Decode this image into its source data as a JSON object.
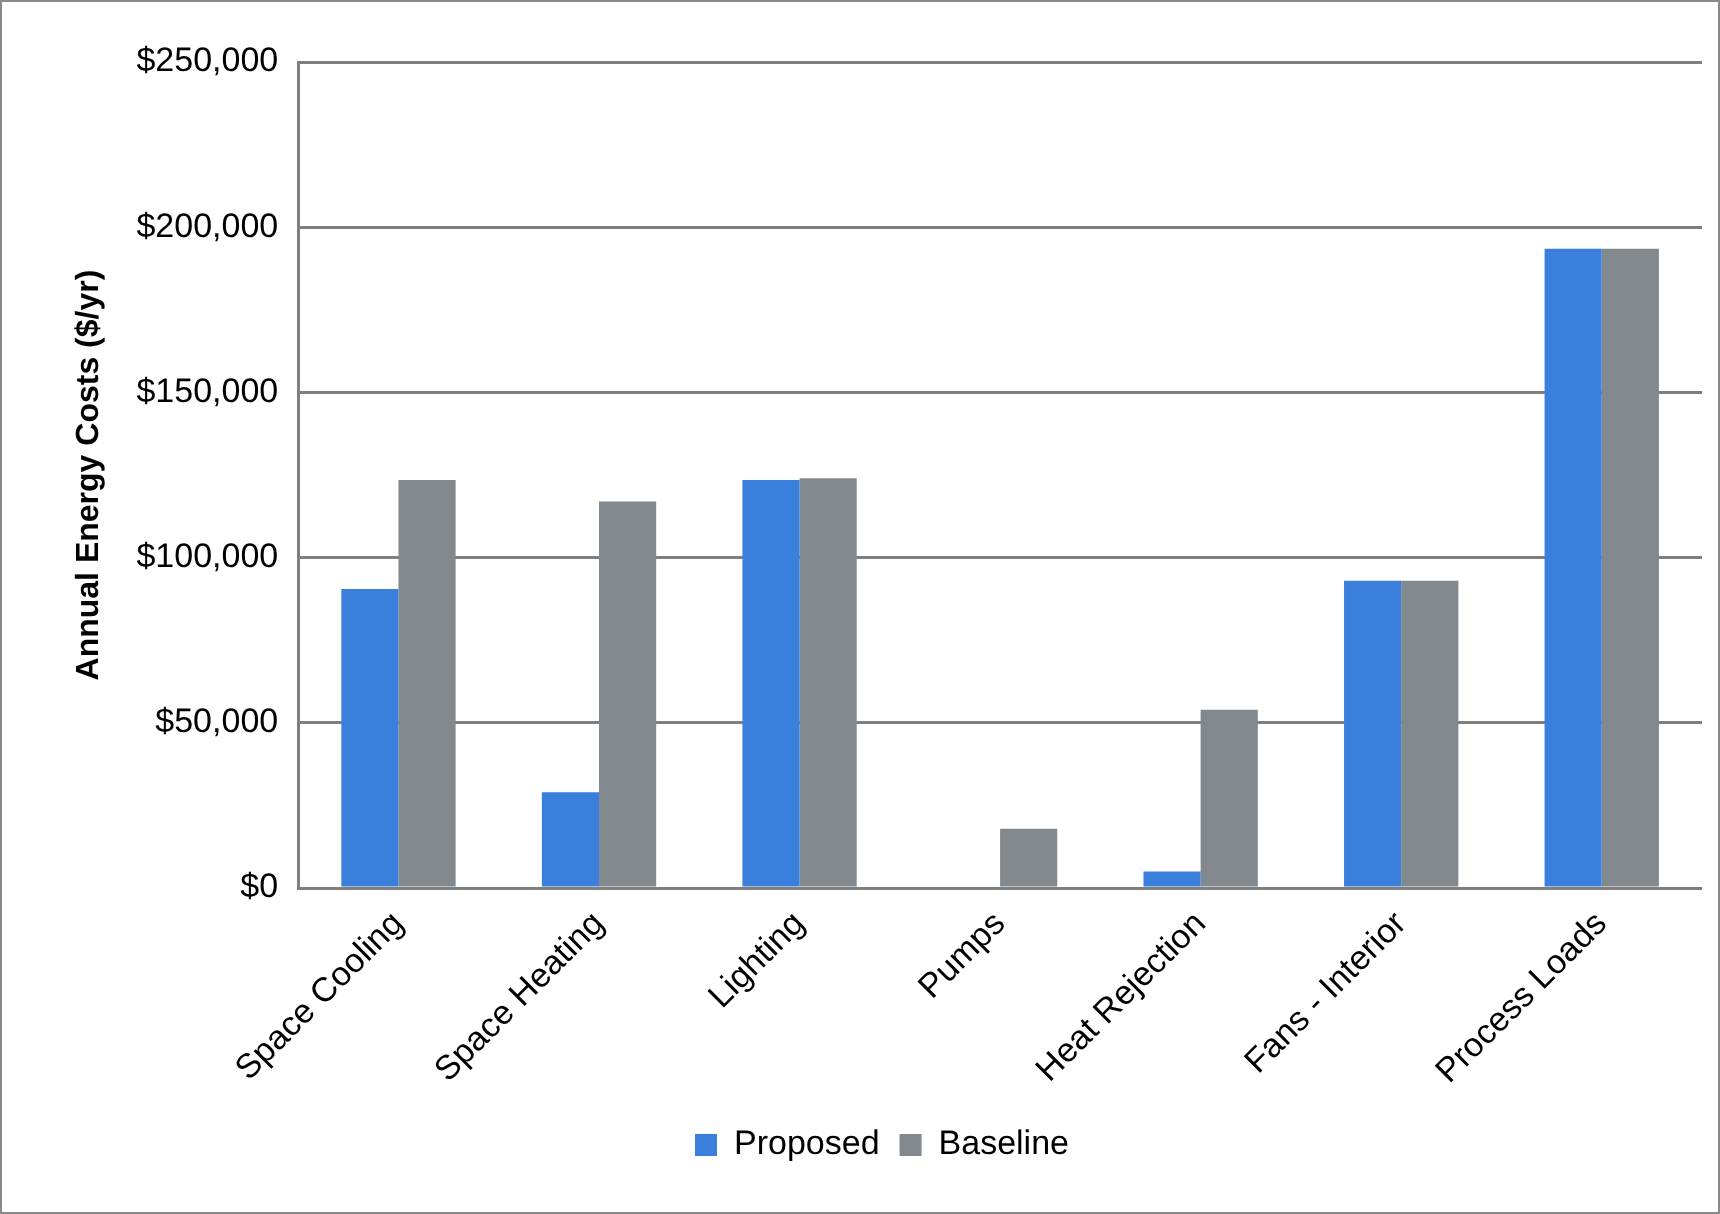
{
  "chart_data": {
    "type": "bar",
    "ylabel": "Annual Energy Costs ($/yr)",
    "categories": [
      "Space Cooling",
      "Space Heating",
      "Lighting",
      "Pumps",
      "Heat Rejection",
      "Fans - Interior",
      "Process Loads"
    ],
    "series": [
      {
        "name": "Proposed",
        "color": "#397fdb",
        "values": [
          90500,
          29000,
          123500,
          0,
          5000,
          93000,
          193500
        ]
      },
      {
        "name": "Baseline",
        "color": "#81888e",
        "values": [
          123500,
          117000,
          124000,
          18000,
          54000,
          93000,
          193500
        ]
      }
    ],
    "ylim": [
      0,
      250000
    ],
    "yticks": [
      {
        "value": 0,
        "label": "$0"
      },
      {
        "value": 50000,
        "label": "$50,000"
      },
      {
        "value": 100000,
        "label": "$100,000"
      },
      {
        "value": 150000,
        "label": "$150,000"
      },
      {
        "value": 200000,
        "label": "$200,000"
      },
      {
        "value": 250000,
        "label": "$250,000"
      }
    ],
    "grid": "y",
    "legend": "bottom"
  }
}
